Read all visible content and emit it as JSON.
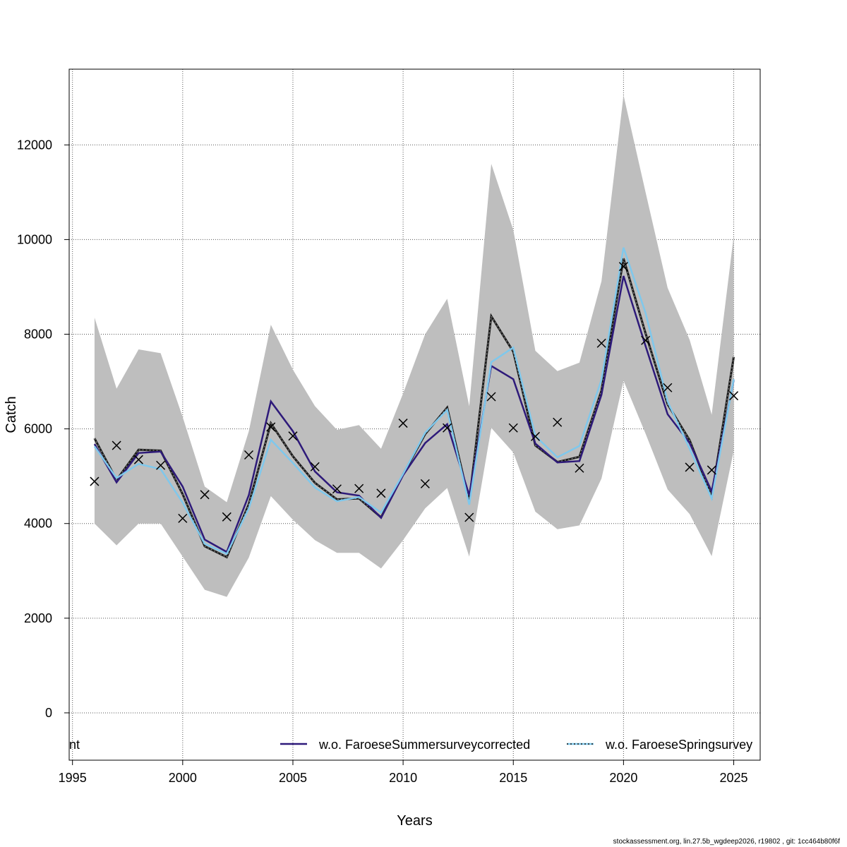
{
  "chart_data": {
    "type": "line",
    "xlabel": "Years",
    "ylabel": "Catch",
    "xlim": [
      1994.85,
      2026.2
    ],
    "ylim": [
      -1000,
      13600
    ],
    "grid": true,
    "x_ticks": [
      1995,
      2000,
      2005,
      2010,
      2015,
      2020,
      2025
    ],
    "y_ticks": [
      0,
      2000,
      4000,
      6000,
      8000,
      10000,
      12000
    ],
    "years": [
      1996,
      1997,
      1998,
      1999,
      2000,
      2001,
      2002,
      2003,
      2004,
      2005,
      2006,
      2007,
      2008,
      2009,
      2010,
      2011,
      2012,
      2013,
      2014,
      2015,
      2016,
      2017,
      2018,
      2019,
      2020,
      2021,
      2022,
      2023,
      2024,
      2025
    ],
    "band_upper": [
      8350,
      6850,
      7680,
      7600,
      6250,
      4780,
      4450,
      5950,
      8200,
      7250,
      6480,
      5980,
      6080,
      5580,
      6750,
      8000,
      8750,
      6480,
      11600,
      10200,
      7650,
      7220,
      7400,
      9120,
      13050,
      11000,
      8980,
      7880,
      6300,
      10080
    ],
    "band_lower": [
      4000,
      3540,
      4000,
      4000,
      3300,
      2600,
      2450,
      3280,
      4580,
      4080,
      3650,
      3380,
      3380,
      3050,
      3650,
      4320,
      4750,
      3300,
      6020,
      5500,
      4250,
      3880,
      3960,
      4950,
      7020,
      5900,
      4720,
      4200,
      3310,
      5540
    ],
    "estimate": [
      5800,
      4920,
      5560,
      5540,
      4620,
      3520,
      3290,
      4410,
      6120,
      5420,
      4860,
      4510,
      4530,
      4130,
      5040,
      5890,
      6450,
      4470,
      8380,
      7630,
      5650,
      5300,
      5410,
      6810,
      9600,
      8020,
      6520,
      5760,
      4570,
      7520
    ],
    "observed": [
      4890,
      5650,
      5350,
      5230,
      4110,
      4610,
      4140,
      5450,
      6040,
      5850,
      5200,
      4730,
      4740,
      4640,
      6120,
      4840,
      6020,
      4130,
      6680,
      6020,
      5840,
      6140,
      5170,
      7810,
      9430,
      7870,
      6870,
      5190,
      5130,
      6700
    ],
    "series": [
      {
        "name": "w.o. FaroeseSummersurveycorrected",
        "color": "#2e1a7a",
        "values": [
          5680,
          4870,
          5490,
          5520,
          4780,
          3660,
          3400,
          4600,
          6580,
          5950,
          5100,
          4660,
          4590,
          4120,
          5020,
          5700,
          6100,
          4600,
          7330,
          7050,
          5690,
          5290,
          5320,
          6720,
          9230,
          7750,
          6310,
          5700,
          4680,
          7030
        ]
      },
      {
        "name": "w.o. FaroeseSpringsurvey",
        "color": "#7fc8ec",
        "values": [
          5630,
          4960,
          5260,
          5150,
          4440,
          3570,
          3360,
          4320,
          5770,
          5280,
          4760,
          4470,
          4560,
          4230,
          5050,
          5920,
          6400,
          4400,
          7410,
          7720,
          5850,
          5400,
          5640,
          7040,
          9830,
          8450,
          6580,
          5580,
          4530,
          7050
        ]
      }
    ],
    "legend": {
      "placement": "bottom",
      "partial_label": "nt"
    }
  },
  "colors": {
    "band": "#bebebe",
    "estimate": "#1a1a1a",
    "marker": "#000000",
    "grid": "#555555"
  },
  "footer": "stockassessment.org, lin.27.5b_wgdeep2026, r19802 , git: 1cc464b80f6f"
}
